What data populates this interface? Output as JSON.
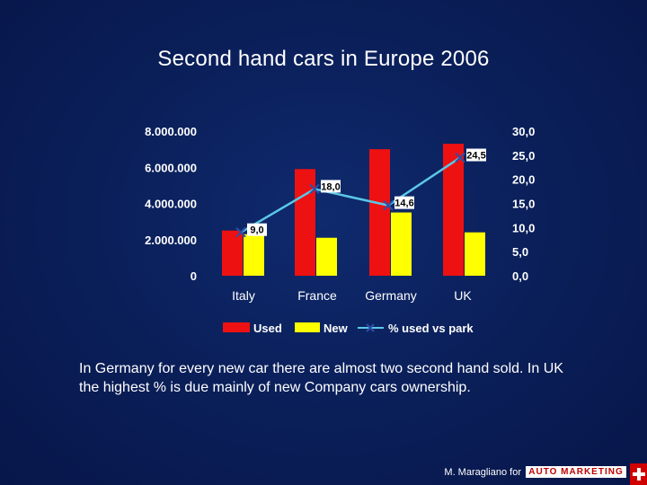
{
  "slide": {
    "title": "Second hand cars in Europe 2006",
    "caption": "In Germany for every new car there are almost two second hand sold. In UK the highest % is due mainly of new Company cars ownership.",
    "footer_text": "M. Maragliano for",
    "logo_text": "AUTO MARKETING"
  },
  "colors": {
    "used": "#ee1111",
    "new": "#ffff00",
    "line": "#5bc8e6",
    "marker": "#2c4fa8",
    "background": "#0b1f5c"
  },
  "chart_data": {
    "type": "bar",
    "title": "",
    "categories": [
      "Italy",
      "France",
      "Germany",
      "UK"
    ],
    "series": [
      {
        "name": "Used",
        "type": "bar",
        "axis": "left",
        "values": [
          2500000,
          5900000,
          7000000,
          7300000
        ]
      },
      {
        "name": "New",
        "type": "bar",
        "axis": "left",
        "values": [
          2300000,
          2100000,
          3500000,
          2400000
        ]
      },
      {
        "name": "% used vs park",
        "type": "line",
        "axis": "right",
        "values": [
          9.0,
          18.0,
          14.6,
          24.5
        ],
        "labels": [
          "9,0",
          "18,0",
          "14,6",
          "24,5"
        ]
      }
    ],
    "y_left": {
      "ylim": [
        0,
        8000000
      ],
      "ticks": [
        "0",
        "2.000.000",
        "4.000.000",
        "6.000.000",
        "8.000.000"
      ],
      "tick_values": [
        0,
        2000000,
        4000000,
        6000000,
        8000000
      ]
    },
    "y_right": {
      "ylim": [
        0,
        30
      ],
      "ticks": [
        "0,0",
        "5,0",
        "10,0",
        "15,0",
        "20,0",
        "25,0",
        "30,0"
      ],
      "tick_values": [
        0,
        5,
        10,
        15,
        20,
        25,
        30
      ]
    },
    "legend": [
      "Used",
      "New",
      "% used vs park"
    ],
    "legend_position": "bottom",
    "grid": false
  }
}
